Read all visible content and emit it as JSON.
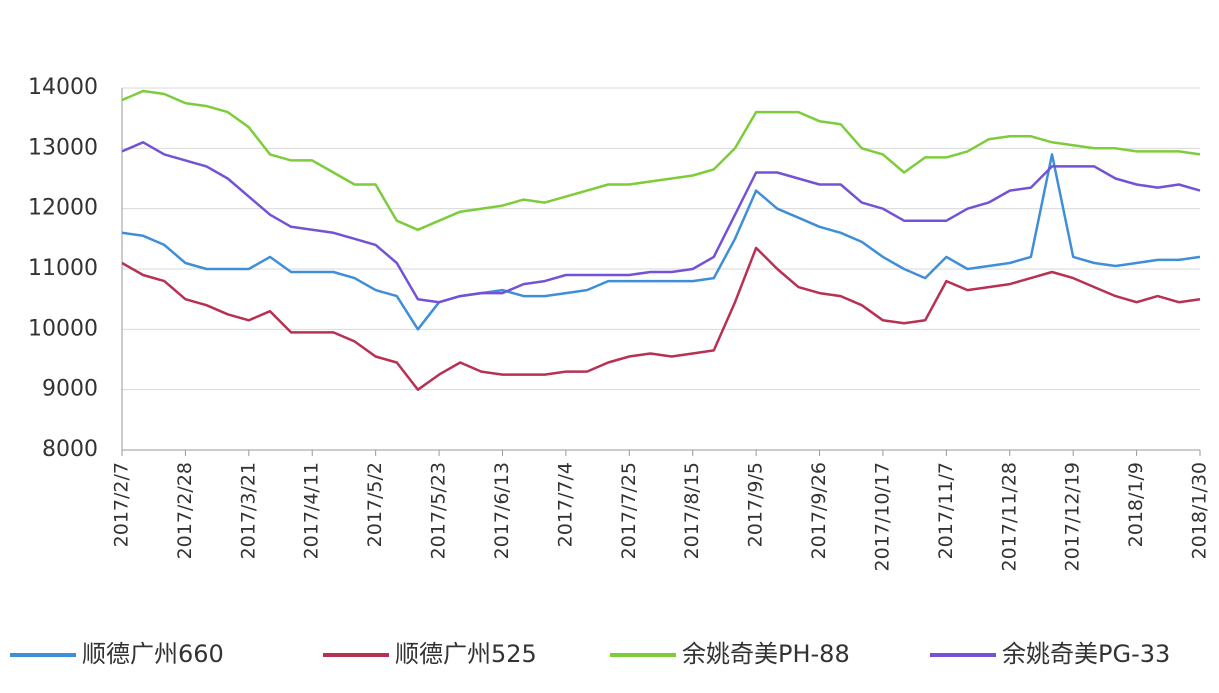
{
  "chart_data": {
    "type": "line",
    "categories": [
      "2017/2/7",
      null,
      null,
      "2017/2/28",
      null,
      null,
      "2017/3/21",
      null,
      null,
      "2017/4/11",
      null,
      null,
      "2017/5/2",
      null,
      null,
      "2017/5/23",
      null,
      null,
      "2017/6/13",
      null,
      null,
      "2017/7/4",
      null,
      null,
      "2017/7/25",
      null,
      null,
      "2017/8/15",
      null,
      null,
      "2017/9/5",
      null,
      null,
      "2017/9/26",
      null,
      null,
      "2017/10/17",
      null,
      null,
      "2017/11/7",
      null,
      null,
      "2017/11/28",
      null,
      null,
      "2017/12/19",
      null,
      null,
      "2018/1/9",
      null,
      null,
      "2018/1/30"
    ],
    "series": [
      {
        "name": "顺德广州660",
        "color": "#3f8fd8",
        "values": [
          11600,
          11550,
          11400,
          11100,
          11000,
          11000,
          11000,
          11200,
          10950,
          10950,
          10950,
          10850,
          10650,
          10550,
          10000,
          10450,
          10550,
          10600,
          10650,
          10550,
          10550,
          10600,
          10650,
          10800,
          10800,
          10800,
          10800,
          10800,
          10850,
          11500,
          12300,
          12000,
          11850,
          11700,
          11600,
          11450,
          11200,
          11000,
          10850,
          11200,
          11000,
          11050,
          11100,
          11200,
          12900,
          11200,
          11100,
          11050,
          11100,
          11150,
          11150,
          11200
        ]
      },
      {
        "name": "顺德广州525",
        "color": "#b83052",
        "values": [
          11100,
          10900,
          10800,
          10500,
          10400,
          10250,
          10150,
          10300,
          9950,
          9950,
          9950,
          9800,
          9550,
          9450,
          9000,
          9250,
          9450,
          9300,
          9250,
          9250,
          9250,
          9300,
          9300,
          9450,
          9550,
          9600,
          9550,
          9600,
          9650,
          10450,
          11350,
          11000,
          10700,
          10600,
          10550,
          10400,
          10150,
          10100,
          10150,
          10800,
          10650,
          10700,
          10750,
          10850,
          10950,
          10850,
          10700,
          10550,
          10450,
          10550,
          10450,
          10500
        ]
      },
      {
        "name": "余姚奇美PH-88",
        "color": "#7dcc3a",
        "values": [
          13800,
          13950,
          13900,
          13750,
          13700,
          13600,
          13350,
          12900,
          12800,
          12800,
          12600,
          12400,
          12400,
          11800,
          11650,
          11800,
          11950,
          12000,
          12050,
          12150,
          12100,
          12200,
          12300,
          12400,
          12400,
          12450,
          12500,
          12550,
          12650,
          13000,
          13600,
          13600,
          13600,
          13450,
          13400,
          13000,
          12900,
          12600,
          12850,
          12850,
          12950,
          13150,
          13200,
          13200,
          13100,
          13050,
          13000,
          13000,
          12950,
          12950,
          12950,
          12900
        ]
      },
      {
        "name": "余姚奇美PG-33",
        "color": "#7452d6",
        "values": [
          12950,
          13100,
          12900,
          12800,
          12700,
          12500,
          12200,
          11900,
          11700,
          11650,
          11600,
          11500,
          11400,
          11100,
          10500,
          10450,
          10550,
          10600,
          10600,
          10750,
          10800,
          10900,
          10900,
          10900,
          10900,
          10950,
          10950,
          11000,
          11200,
          11900,
          12600,
          12600,
          12500,
          12400,
          12400,
          12100,
          12000,
          11800,
          11800,
          11800,
          12000,
          12100,
          12300,
          12350,
          12700,
          12700,
          12700,
          12500,
          12400,
          12350,
          12400,
          12300
        ]
      }
    ],
    "ylim": [
      8000,
      14000
    ],
    "yticks": [
      8000,
      9000,
      10000,
      11000,
      12000,
      13000,
      14000
    ],
    "grid": true,
    "legend": "bottom"
  }
}
